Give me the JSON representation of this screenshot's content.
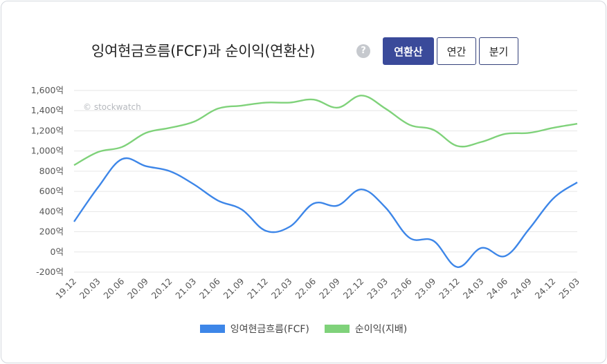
{
  "header": {
    "title": "잉여현금흐름(FCF)과 순이익(연환산)",
    "help_icon": "?",
    "tabs": [
      {
        "label": "연환산",
        "active": true
      },
      {
        "label": "연간",
        "active": false
      },
      {
        "label": "분기",
        "active": false
      }
    ]
  },
  "watermark": "© stockwatch",
  "colors": {
    "fcf": "#3d86e8",
    "net_income": "#7fd27a",
    "grid": "#e6e6e6",
    "active_tab": "#3a4a9a"
  },
  "chart_data": {
    "type": "line",
    "categories": [
      "19.12",
      "20.03",
      "20.06",
      "20.09",
      "20.12",
      "21.03",
      "21.06",
      "21.09",
      "21.12",
      "22.03",
      "22.06",
      "22.09",
      "22.12",
      "23.03",
      "23.06",
      "23.09",
      "23.12",
      "24.03",
      "24.06",
      "24.09",
      "24.12",
      "25.03"
    ],
    "y_unit": "억",
    "ylim": [
      -200,
      1600
    ],
    "yticks": [
      -200,
      0,
      200,
      400,
      600,
      800,
      1000,
      1200,
      1400,
      1600
    ],
    "ytick_labels": [
      "-200억",
      "0억",
      "200억",
      "400억",
      "600억",
      "800억",
      "1,000억",
      "1,200억",
      "1,400억",
      "1,600억"
    ],
    "grid": true,
    "legend_position": "bottom",
    "series": [
      {
        "name": "잉여현금흐름(FCF)",
        "color": "#3d86e8",
        "values": [
          300,
          640,
          920,
          850,
          800,
          670,
          510,
          420,
          210,
          250,
          480,
          460,
          620,
          440,
          140,
          110,
          -150,
          40,
          -40,
          230,
          530,
          690
        ]
      },
      {
        "name": "순이익(지배)",
        "color": "#7fd27a",
        "values": [
          860,
          990,
          1040,
          1180,
          1230,
          1290,
          1420,
          1450,
          1480,
          1480,
          1510,
          1430,
          1550,
          1420,
          1260,
          1210,
          1050,
          1090,
          1170,
          1180,
          1230,
          1270
        ]
      }
    ]
  }
}
